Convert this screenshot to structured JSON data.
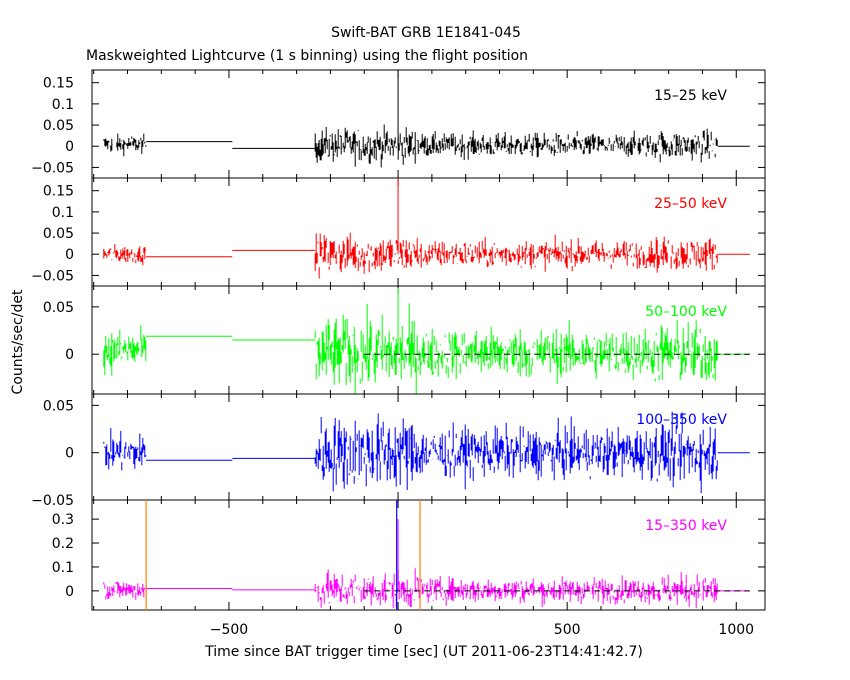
{
  "title": "Swift-BAT GRB 1E1841-045",
  "subtitle": "Maskweighted Lightcurve (1 s binning) using the flight position",
  "ylabel": "Counts/sec/det",
  "xlabel": "Time since BAT trigger time [sec] (UT 2011-06-23T14:41:42.7)",
  "x_ticks": [
    -500,
    0,
    500,
    1000
  ],
  "x_tick_labels": [
    "−500",
    "0",
    "500",
    "1000"
  ],
  "colors": {
    "axes": "#000000",
    "panel1": "#000000",
    "panel2": "#ff0000",
    "panel3": "#00ff00",
    "panel4": "#0000ff",
    "panel5": "#ff00ff",
    "marker_orange": "#ff8000",
    "marker_blue": "#0000ff"
  },
  "chart_data": {
    "type": "line",
    "xlim": [
      -905,
      1085
    ],
    "x_ticks": [
      -500,
      0,
      500,
      1000
    ],
    "panels": [
      {
        "band": "15–25 keV",
        "color": "#000000",
        "ylim": [
          -0.075,
          0.18
        ],
        "yticks": [
          -0.05,
          0,
          0.05,
          0.1,
          0.15
        ],
        "ytick_labels": [
          "−0.05",
          "0",
          "0.05",
          "0.1",
          "0.15"
        ],
        "segments": [
          {
            "x": [
              -870,
              -745
            ],
            "noise": 0.011,
            "mean": 0.005
          },
          {
            "x": [
              -745,
              -490
            ],
            "value": 0.011
          },
          {
            "x": [
              -490,
              -245
            ],
            "value": -0.005
          },
          {
            "x": [
              -245,
              945
            ],
            "noise": 0.014,
            "mean": 0.002
          }
        ],
        "spike": {
          "x": 0,
          "value": 0.18
        },
        "tail": {
          "x": [
            945,
            1040
          ],
          "value": 0
        }
      },
      {
        "band": "25–50 keV",
        "color": "#ff0000",
        "ylim": [
          -0.075,
          0.18
        ],
        "yticks": [
          -0.05,
          0,
          0.05,
          0.1,
          0.15
        ],
        "ytick_labels": [
          "−0.05",
          "0",
          "0.05",
          "0.1",
          "0.15"
        ],
        "segments": [
          {
            "x": [
              -870,
              -745
            ],
            "noise": 0.011,
            "mean": 0.0
          },
          {
            "x": [
              -745,
              -490
            ],
            "value": -0.006
          },
          {
            "x": [
              -490,
              -245
            ],
            "value": 0.009
          },
          {
            "x": [
              -245,
              945
            ],
            "noise": 0.016,
            "mean": 0.0
          }
        ],
        "spike": {
          "x": 0,
          "value": 0.18
        },
        "tail": {
          "x": [
            945,
            1040
          ],
          "value": 0
        }
      },
      {
        "band": "50–100 keV",
        "color": "#00ff00",
        "ylim": [
          -0.042,
          0.072
        ],
        "yticks": [
          0,
          0.05
        ],
        "ytick_labels": [
          "0",
          "0.05"
        ],
        "segments": [
          {
            "x": [
              -870,
              -745
            ],
            "noise": 0.011,
            "mean": 0.004
          },
          {
            "x": [
              -745,
              -490
            ],
            "value": 0.019
          },
          {
            "x": [
              -490,
              -245
            ],
            "value": 0.015
          },
          {
            "x": [
              -245,
              945
            ],
            "noise": 0.013,
            "mean": 0.001
          }
        ],
        "spike": {
          "x": 0,
          "value": 0.07
        },
        "tail": {
          "x": [
            945,
            1040
          ],
          "value": 0
        },
        "dashed_zero": [
          -100,
          1040
        ]
      },
      {
        "band": "100–350 keV",
        "color": "#0000ff",
        "ylim": [
          -0.05,
          0.062
        ],
        "yticks": [
          -0.05,
          0,
          0.05
        ],
        "ytick_labels": [
          "−0.05",
          "0",
          "0.05"
        ],
        "segments": [
          {
            "x": [
              -870,
              -745
            ],
            "noise": 0.01,
            "mean": 0.0
          },
          {
            "x": [
              -745,
              -490
            ],
            "value": -0.008
          },
          {
            "x": [
              -490,
              -245
            ],
            "value": -0.006
          },
          {
            "x": [
              -245,
              945
            ],
            "noise": 0.013,
            "mean": 0.0
          }
        ],
        "tail": {
          "x": [
            945,
            1040
          ],
          "value": 0
        }
      },
      {
        "band": "15–350 keV",
        "color": "#ff00ff",
        "ylim": [
          -0.08,
          0.38
        ],
        "yticks": [
          0,
          0.1,
          0.2,
          0.3
        ],
        "ytick_labels": [
          "0",
          "0.1",
          "0.2",
          "0.3"
        ],
        "segments": [
          {
            "x": [
              -870,
              -745
            ],
            "noise": 0.022,
            "mean": 0.005
          },
          {
            "x": [
              -745,
              -490
            ],
            "value": 0.01
          },
          {
            "x": [
              -490,
              -245
            ],
            "value": 0.004
          },
          {
            "x": [
              -245,
              945
            ],
            "noise": 0.026,
            "mean": 0.003
          }
        ],
        "spike": {
          "x": 0,
          "value": 0.3
        },
        "tail": {
          "x": [
            945,
            1040
          ],
          "value": 0
        },
        "dashed_zero": [
          -100,
          1040
        ],
        "markers": [
          {
            "x": -745,
            "color": "#ff8000"
          },
          {
            "x": 65,
            "color": "#ff8000"
          },
          {
            "x": -4,
            "color": "#0000ff"
          }
        ]
      }
    ]
  }
}
